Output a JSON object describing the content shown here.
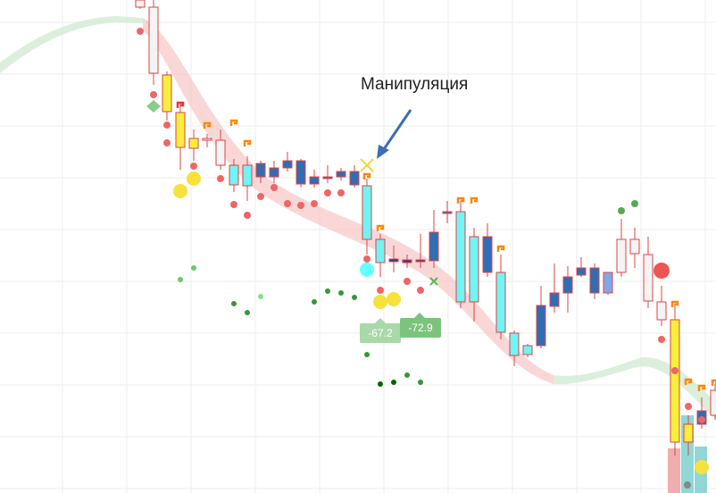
{
  "annotation": "Манипуляция",
  "badges": [
    {
      "label": "-67.2"
    },
    {
      "label": "-72.9"
    }
  ]
}
